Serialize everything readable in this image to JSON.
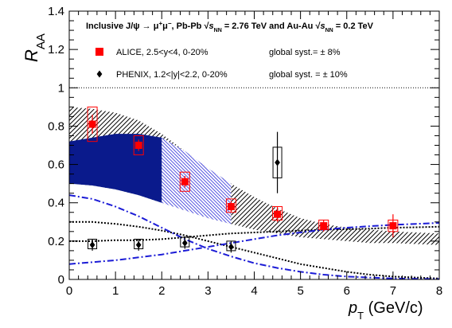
{
  "chart_data": {
    "type": "scatter",
    "title": "",
    "header": {
      "prefix": "Inclusive J/ψ → μ",
      "sup_plus": "+",
      "mu": "μ",
      "sup_minus": "−",
      "mid": ", Pb-Pb ",
      "sqrt": "√",
      "s": "s",
      "sub": "NN",
      "e1": " = 2.76 TeV and Au-Au ",
      "e2": " = 0.2 TeV"
    },
    "ylabel": {
      "main": "R",
      "sub": "AA"
    },
    "xlabel": {
      "main": "p",
      "sub": "T",
      "unit": " (GeV/c)"
    },
    "xlim": [
      0,
      8
    ],
    "ylim": [
      0,
      1.4
    ],
    "xticks": [
      "0",
      "1",
      "2",
      "3",
      "4",
      "5",
      "6",
      "7",
      "8"
    ],
    "yticks": [
      "0",
      "0.2",
      "0.4",
      "0.6",
      "0.8",
      "1",
      "1.2",
      "1.4"
    ],
    "reference_line": 1,
    "legend": {
      "position": "top",
      "items": [
        {
          "label": "ALICE, 2.5<y<4, 0-20%",
          "syst": "global syst.= ± 8%",
          "marker": "square",
          "color": "#ff0000"
        },
        {
          "label": "PHENIX, 1.2<|y|<2.2, 0-20%",
          "syst": "global syst. = ± 10%",
          "marker": "diamond",
          "color": "#000000"
        }
      ]
    },
    "series": [
      {
        "name": "ALICE, 2.5<y<4, 0-20%",
        "color": "#ff0000",
        "points": [
          {
            "x": 0.5,
            "y": 0.81,
            "stat": 0.05,
            "syst_lo": 0.72,
            "syst_hi": 0.9
          },
          {
            "x": 1.5,
            "y": 0.7,
            "stat": 0.03,
            "syst_lo": 0.65,
            "syst_hi": 0.75
          },
          {
            "x": 2.5,
            "y": 0.51,
            "stat": 0.03,
            "syst_lo": 0.46,
            "syst_hi": 0.56
          },
          {
            "x": 3.5,
            "y": 0.38,
            "stat": 0.03,
            "syst_lo": 0.35,
            "syst_hi": 0.42
          },
          {
            "x": 4.5,
            "y": 0.34,
            "stat": 0.04,
            "syst_lo": 0.31,
            "syst_hi": 0.38
          },
          {
            "x": 5.5,
            "y": 0.28,
            "stat": 0.03,
            "syst_lo": 0.26,
            "syst_hi": 0.31
          },
          {
            "x": 7.0,
            "y": 0.28,
            "stat": 0.06,
            "syst_lo": 0.25,
            "syst_hi": 0.31
          }
        ]
      },
      {
        "name": "PHENIX, 1.2<|y|<2.2, 0-20%",
        "color": "#000000",
        "points": [
          {
            "x": 0.5,
            "y": 0.18,
            "stat": 0.03,
            "syst_lo": 0.16,
            "syst_hi": 0.21
          },
          {
            "x": 1.5,
            "y": 0.18,
            "stat": 0.03,
            "syst_lo": 0.16,
            "syst_hi": 0.21
          },
          {
            "x": 2.5,
            "y": 0.19,
            "stat": 0.03,
            "syst_lo": 0.17,
            "syst_hi": 0.22
          },
          {
            "x": 3.5,
            "y": 0.17,
            "stat": 0.03,
            "syst_lo": 0.15,
            "syst_hi": 0.2
          },
          {
            "x": 4.5,
            "y": 0.61,
            "stat": 0.16,
            "syst_lo": 0.53,
            "syst_hi": 0.69
          }
        ]
      }
    ],
    "bands": [
      {
        "style": "black-hatched",
        "x": [
          0,
          0.5,
          1,
          1.5,
          2,
          2.5,
          3,
          3.5,
          4,
          4.5,
          5,
          5.5,
          6,
          6.5,
          7,
          7.5,
          8
        ],
        "upper": [
          0.9,
          0.89,
          0.87,
          0.83,
          0.76,
          0.67,
          0.58,
          0.5,
          0.43,
          0.37,
          0.32,
          0.29,
          0.27,
          0.26,
          0.25,
          0.245,
          0.24
        ],
        "lower": [
          0.5,
          0.49,
          0.47,
          0.44,
          0.4,
          0.36,
          0.32,
          0.29,
          0.26,
          0.24,
          0.22,
          0.21,
          0.2,
          0.19,
          0.19,
          0.185,
          0.18
        ]
      },
      {
        "style": "blue-solid",
        "x": [
          0,
          0.5,
          1,
          1.5,
          2
        ],
        "upper": [
          0.72,
          0.74,
          0.76,
          0.76,
          0.74
        ],
        "lower": [
          0.5,
          0.49,
          0.47,
          0.44,
          0.4
        ]
      },
      {
        "style": "blue-hatched",
        "x": [
          2,
          2.5,
          3,
          3.5
        ],
        "upper": [
          0.74,
          0.67,
          0.58,
          0.5
        ],
        "lower": [
          0.4,
          0.36,
          0.32,
          0.29
        ]
      }
    ],
    "curves": [
      {
        "style": "black-dotted",
        "x": [
          0,
          0.5,
          1,
          1.5,
          2,
          2.5,
          3,
          3.5,
          4,
          4.5,
          5,
          5.5,
          6,
          6.5,
          7,
          7.5,
          8
        ],
        "y": [
          0.3,
          0.3,
          0.29,
          0.275,
          0.255,
          0.23,
          0.2,
          0.17,
          0.14,
          0.11,
          0.08,
          0.06,
          0.04,
          0.025,
          0.015,
          0.01,
          0.005
        ]
      },
      {
        "style": "black-dotted",
        "x": [
          0,
          0.5,
          1,
          1.5,
          2,
          2.5,
          3,
          3.5,
          4,
          4.5,
          5,
          5.5,
          6,
          6.5,
          7,
          7.5,
          8
        ],
        "y": [
          0.2,
          0.2,
          0.205,
          0.205,
          0.21,
          0.22,
          0.23,
          0.24,
          0.245,
          0.25,
          0.255,
          0.26,
          0.262,
          0.265,
          0.27,
          0.272,
          0.275
        ]
      },
      {
        "style": "blue-dashdot",
        "x": [
          0,
          0.5,
          1,
          1.5,
          2,
          2.5,
          3,
          3.5,
          4,
          4.5,
          5,
          5.5,
          6,
          6.5,
          7,
          7.5,
          8
        ],
        "y": [
          0.44,
          0.42,
          0.38,
          0.33,
          0.27,
          0.21,
          0.16,
          0.12,
          0.085,
          0.06,
          0.04,
          0.025,
          0.015,
          0.01,
          0.005,
          0.003,
          0.002
        ]
      },
      {
        "style": "blue-dashdot",
        "x": [
          0,
          0.5,
          1,
          1.5,
          2,
          2.5,
          3,
          3.5,
          4,
          4.5,
          5,
          5.5,
          6,
          6.5,
          7,
          7.5,
          8
        ],
        "y": [
          0.08,
          0.09,
          0.1,
          0.115,
          0.13,
          0.15,
          0.17,
          0.19,
          0.21,
          0.23,
          0.245,
          0.26,
          0.27,
          0.278,
          0.285,
          0.29,
          0.295
        ]
      }
    ]
  }
}
